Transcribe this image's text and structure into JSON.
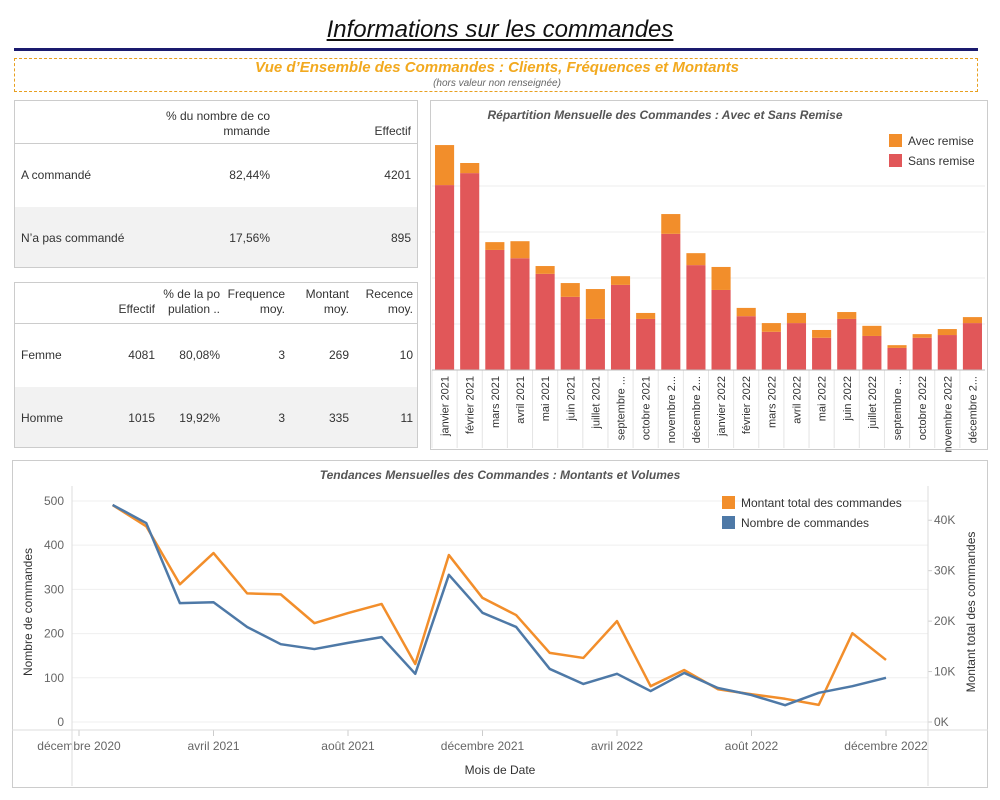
{
  "header": {
    "title": "Informations sur les commandes",
    "subtitle": "Vue d’Ensemble des Commandes : Clients, Fréquences et Montants",
    "note": "(hors valeur non renseignée)"
  },
  "tables": [
    {
      "columns": [
        "% du nombre de commande",
        "Effectif"
      ],
      "rows": [
        {
          "label": "A commandé",
          "cells": [
            "82,44%",
            "4201"
          ]
        },
        {
          "label": "N’a pas commandé",
          "cells": [
            "17,56%",
            "895"
          ]
        }
      ]
    },
    {
      "columns": [
        "Effectif",
        "% de la population ..",
        "Frequence moy.",
        "Montant moy.",
        "Recence moy."
      ],
      "rows": [
        {
          "label": "Femme",
          "cells": [
            "4081",
            "80,08%",
            "3",
            "269",
            "10"
          ]
        },
        {
          "label": "Homme",
          "cells": [
            "1015",
            "19,92%",
            "3",
            "335",
            "11"
          ]
        }
      ]
    }
  ],
  "chart_data": [
    {
      "type": "stacked_bar",
      "title": "Répartition Mensuelle des Commandes : Avec et Sans Remise",
      "categories": [
        "janvier 2021",
        "février 2021",
        "mars 2021",
        "avril 2021",
        "mai 2021",
        "juin 2021",
        "juillet 2021",
        "septembre ...",
        "octobre 2021",
        "novembre 2...",
        "décembre 2...",
        "janvier 2022",
        "février 2022",
        "mars 2022",
        "avril 2022",
        "mai 2022",
        "juin 2022",
        "juillet 2022",
        "septembre ...",
        "octobre 2022",
        "novembre 2022",
        "décembre 2..."
      ],
      "series": [
        {
          "name": "Sans remise",
          "color": "#e15759",
          "values": [
            402,
            428,
            261,
            243,
            209,
            159,
            111,
            185,
            111,
            296,
            228,
            174,
            117,
            83,
            102,
            70,
            111,
            74,
            48,
            70,
            76,
            102
          ]
        },
        {
          "name": "Avec remise",
          "color": "#f28e2b",
          "values": [
            87,
            22,
            17,
            37,
            17,
            30,
            65,
            19,
            13,
            43,
            26,
            50,
            18,
            19,
            22,
            17,
            15,
            22,
            6,
            8,
            13,
            13
          ]
        }
      ],
      "ylim": [
        0,
        500
      ],
      "yticks": [
        100,
        200,
        300,
        400
      ],
      "ytick_labels": false,
      "grid": true,
      "legend": "top-right"
    },
    {
      "type": "line",
      "title": "Tendances Mensuelles des Commandes : Montants et Volumes",
      "x_label": "Mois de Date",
      "y_label": "Nombre de commandes",
      "y2_label": "Montant total des commandes",
      "x": [
        "2021-01",
        "2021-02",
        "2021-03",
        "2021-04",
        "2021-05",
        "2021-06",
        "2021-07",
        "2021-08",
        "2021-09",
        "2021-10",
        "2021-11",
        "2021-12",
        "2022-01",
        "2022-02",
        "2022-03",
        "2022-04",
        "2022-05",
        "2022-06",
        "2022-07",
        "2022-08",
        "2022-09",
        "2022-10",
        "2022-11",
        "2022-12"
      ],
      "xlim": [
        "2020-12",
        "2022-12"
      ],
      "xticks": [
        {
          "value": "2020-12",
          "label": "décembre 2020"
        },
        {
          "value": "2021-04",
          "label": "avril 2021"
        },
        {
          "value": "2021-08",
          "label": "août 2021"
        },
        {
          "value": "2021-12",
          "label": "décembre 2021"
        },
        {
          "value": "2022-04",
          "label": "avril 2022"
        },
        {
          "value": "2022-08",
          "label": "août 2022"
        },
        {
          "value": "2022-12",
          "label": "décembre 2022"
        }
      ],
      "series": [
        {
          "name": "Montant total des commandes",
          "color": "#f28e2b",
          "axis": "y2",
          "values": [
            43000,
            38800,
            27300,
            33500,
            25500,
            25300,
            19600,
            21600,
            23400,
            11500,
            33100,
            24600,
            21200,
            13700,
            12700,
            20000,
            7100,
            10300,
            6500,
            5500,
            4600,
            3400,
            17600,
            12300
          ]
        },
        {
          "name": "Nombre de commandes",
          "color": "#4e79a7",
          "values": [
            491,
            450,
            269,
            271,
            215,
            176,
            165,
            179,
            192,
            109,
            333,
            247,
            215,
            120,
            86,
            109,
            70,
            111,
            77,
            61,
            38,
            66,
            81,
            100
          ]
        }
      ],
      "ylim": [
        0,
        518
      ],
      "yticks": [
        0,
        100,
        200,
        300,
        400,
        500
      ],
      "y2lim": [
        0,
        45400
      ],
      "y2ticks": [
        {
          "value": 0,
          "label": "0K"
        },
        {
          "value": 10000,
          "label": "10K"
        },
        {
          "value": 20000,
          "label": "20K"
        },
        {
          "value": 30000,
          "label": "30K"
        },
        {
          "value": 40000,
          "label": "40K"
        }
      ],
      "grid": true,
      "legend": "top-right"
    }
  ]
}
